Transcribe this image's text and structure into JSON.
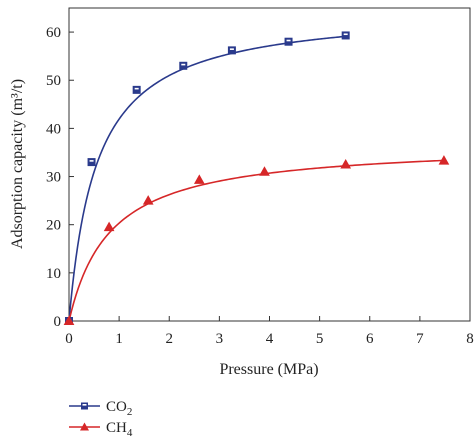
{
  "chart_data": {
    "type": "line",
    "xlabel": "Pressure (MPa)",
    "ylabel": "Adsorption capacity (m³/t)",
    "xlim": [
      0,
      8
    ],
    "ylim": [
      0,
      65
    ],
    "xticks": [
      "0",
      "1",
      "2",
      "3",
      "4",
      "5",
      "6",
      "7",
      "8"
    ],
    "yticks": [
      "0",
      "10",
      "20",
      "30",
      "40",
      "50",
      "60"
    ],
    "grid": false,
    "legend_position": "bottom-left, below plot",
    "series": [
      {
        "name": "CO2",
        "name_base": "CO",
        "name_sub": "2",
        "color": "#2a3a8c",
        "marker": "square",
        "x": [
          0,
          0.45,
          1.35,
          2.28,
          3.25,
          4.38,
          5.52
        ],
        "y": [
          0,
          33,
          48,
          53,
          56.2,
          58,
          59.3
        ],
        "fit": {
          "model": "langmuir",
          "VL": 65,
          "PL": 0.55
        }
      },
      {
        "name": "CH4",
        "name_base": "CH",
        "name_sub": "4",
        "color": "#d62728",
        "marker": "triangle",
        "x": [
          0,
          0.8,
          1.58,
          2.6,
          3.9,
          5.52,
          7.48
        ],
        "y": [
          0,
          19.5,
          25,
          29.3,
          31,
          32.5,
          33.3
        ],
        "fit": {
          "model": "langmuir",
          "VL": 37,
          "PL": 0.82
        }
      }
    ]
  }
}
